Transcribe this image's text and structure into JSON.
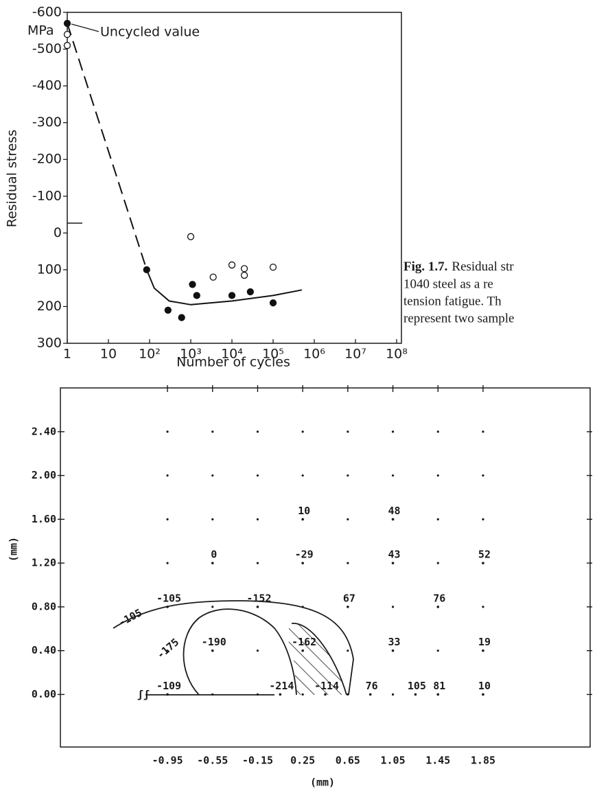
{
  "chart_data": [
    {
      "type": "scatter",
      "y_label": "Residual stress",
      "y_unit": "MPa",
      "x_label": "Number of cycles",
      "annotation": "Uncycled value",
      "xlog": true,
      "y_inverted": true,
      "xlim": [
        1,
        100000000
      ],
      "xticks": [
        1,
        10,
        {
          "value": 100,
          "label": "10²"
        },
        {
          "value": 1000,
          "label": "10³"
        },
        {
          "value": 10000,
          "label": "10⁴"
        },
        {
          "value": 100000,
          "label": "10⁵"
        },
        {
          "value": 1000000,
          "label": "10⁶"
        },
        {
          "value": 10000000,
          "label": "10⁷"
        },
        {
          "value": 100000000,
          "label": "10⁸"
        }
      ],
      "ylim": [
        -600,
        300
      ],
      "yticks": [
        -600,
        -500,
        -400,
        -300,
        -200,
        -100,
        0,
        100,
        200,
        300
      ],
      "series": [
        {
          "marker": "filled",
          "color": "#111111",
          "x": [
            1,
            85,
            280,
            600,
            1100,
            1400,
            10000,
            28000,
            100000
          ],
          "values": [
            -570,
            100,
            210,
            230,
            140,
            170,
            170,
            160,
            190
          ]
        },
        {
          "marker": "open",
          "color": "#111111",
          "x": [
            1,
            1,
            1000,
            3500,
            10000,
            20000,
            20000,
            100000
          ],
          "values": [
            -540,
            -510,
            10,
            120,
            87,
            97,
            115,
            93
          ]
        },
        {
          "marker": "dashed-line",
          "color": "#111111",
          "x": [
            1,
            85
          ],
          "values": [
            -570,
            100
          ]
        },
        {
          "marker": "solid-line",
          "color": "#111111",
          "x": [
            85,
            130,
            300,
            1000,
            10000,
            100000,
            500000
          ],
          "values": [
            100,
            150,
            185,
            195,
            185,
            170,
            155
          ]
        }
      ]
    },
    {
      "type": "contour",
      "x_label": "(mm)",
      "y_label": "(mm)",
      "xlim": [
        -1.9,
        2.8
      ],
      "ylim": [
        -0.48,
        2.8
      ],
      "xticks": [
        -0.95,
        -0.55,
        -0.15,
        0.25,
        0.65,
        1.05,
        1.45,
        1.85
      ],
      "yticks": [
        {
          "value": 2.4,
          "label": "2.40"
        },
        {
          "value": 2.0,
          "label": "2.00"
        },
        {
          "value": 1.6,
          "label": "1.60"
        },
        {
          "value": 1.2,
          "label": "1.20"
        },
        {
          "value": 0.8,
          "label": "0.80"
        },
        {
          "value": 0.4,
          "label": "0.40"
        },
        {
          "value": 0.0,
          "label": "0.00"
        }
      ],
      "contour_levels": [
        -105,
        -175
      ],
      "points": {
        "x": [
          -0.55,
          0.25,
          0.25,
          1.05,
          1.05,
          1.85,
          -0.95,
          -0.15,
          0.65,
          1.45,
          -0.55,
          0.25,
          1.05,
          1.85,
          -0.95,
          0.05,
          0.45,
          0.85,
          1.25,
          1.45,
          1.85
        ],
        "y": [
          1.2,
          1.6,
          1.2,
          1.6,
          1.2,
          1.2,
          0.8,
          0.8,
          0.8,
          0.8,
          0.4,
          0.4,
          0.4,
          0.4,
          0.0,
          0.0,
          0.0,
          0.0,
          0.0,
          0.0,
          0.0
        ],
        "values": [
          0,
          10,
          -29,
          48,
          43,
          52,
          -105,
          -152,
          67,
          76,
          -190,
          -162,
          33,
          19,
          -109,
          -214,
          -114,
          76,
          105,
          81,
          10
        ]
      }
    }
  ],
  "caption": {
    "label": "Fig. 1.7.",
    "lines": [
      "Residual str",
      "1040 steel as a re",
      "tension fatigue. Th",
      "represent two sample"
    ]
  }
}
